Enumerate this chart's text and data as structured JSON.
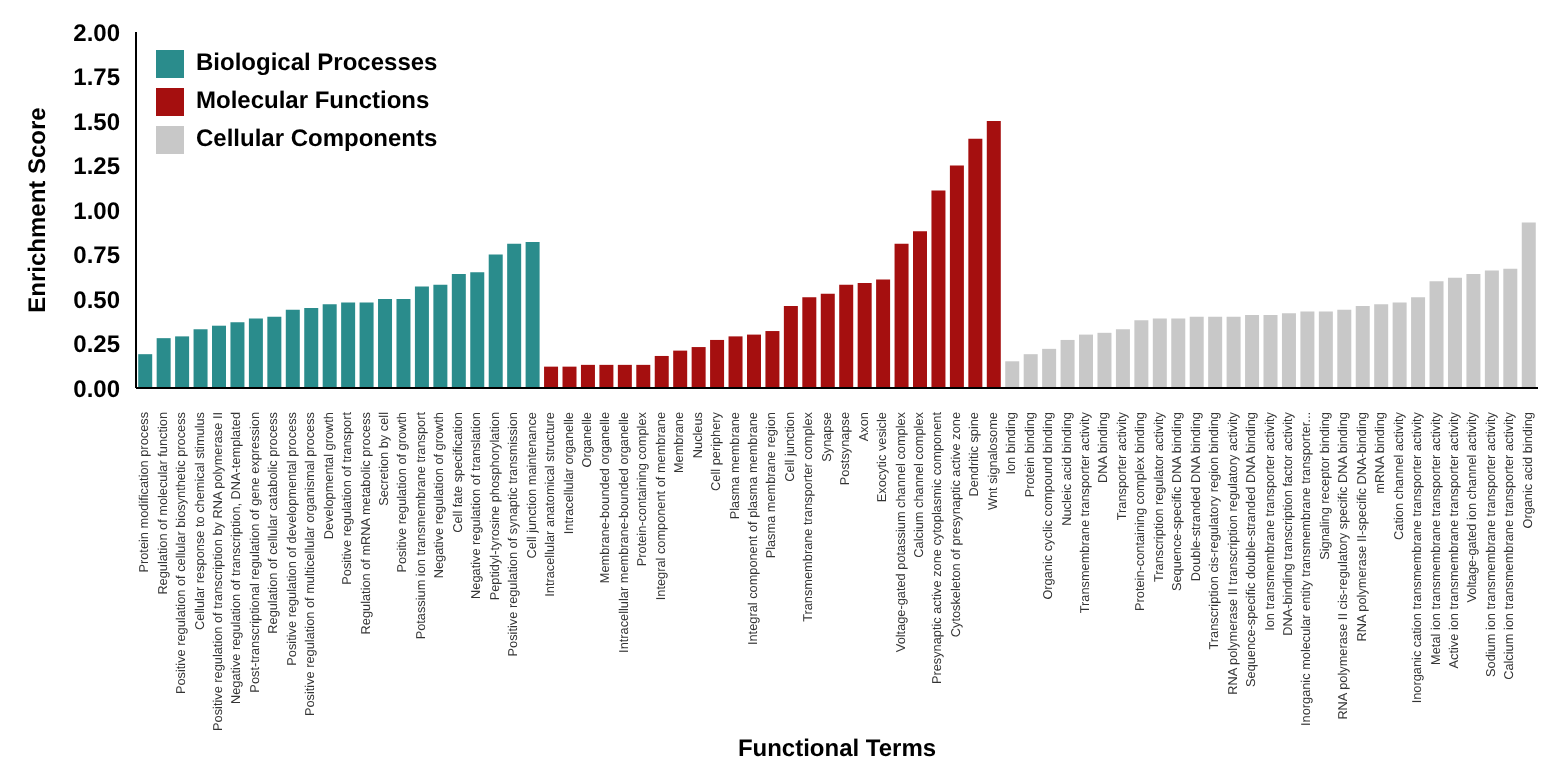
{
  "chart_data": {
    "type": "bar",
    "xlabel": "Functional Terms",
    "ylabel": "Enrichment Score",
    "stacked": true,
    "legend": "top left",
    "grid": false,
    "ylim": [
      0,
      2
    ],
    "yticks": [
      {
        "value": 0,
        "label": "0.00"
      },
      {
        "value": 0.25,
        "label": "0.25"
      },
      {
        "value": 0.5,
        "label": "0.50"
      },
      {
        "value": 0.75,
        "label": "0.75"
      },
      {
        "value": 1,
        "label": "1.00"
      },
      {
        "value": 1.25,
        "label": "1.25"
      },
      {
        "value": 1.5,
        "label": "1.50"
      },
      {
        "value": 1.75,
        "label": "1.75"
      },
      {
        "value": 2,
        "label": "2.00"
      }
    ],
    "categories": [
      "Protein modification process",
      "Regulation of molecular function",
      "Positive regulation of cellular biosynthetic process",
      "Cellular response to chemical stimulus",
      "Positive regulation of transcription by RNA polymerase II",
      "Negative regulation of transcription, DNA-templated",
      "Post-transcriptional regulation of gene expression",
      "Regulation of cellular catabolic process",
      "Positive regulation of developmental process",
      "Positive regulation of multicellular organismal process",
      "Developmental growth",
      "Positive regulation of transport",
      "Regulation of mRNA metabolic process",
      "Secretion by cell",
      "Positive regulation of growth",
      "Potassium ion transmembrane transport",
      "Negative regulation of growth",
      "Cell fate specification",
      "Negative regulation of translation",
      "Peptidyl-tyrosine phosphorylation",
      "Positive regulation of synaptic transmission",
      "Cell junction maintenance",
      "Intracellular anatomical structure",
      "Intracellular organelle",
      "Organelle",
      "Membrane-bounded organelle",
      "Intracellular membrane-bounded organelle",
      "Protein-containing complex",
      "Integral component of membrane",
      "Membrane",
      "Nucleus",
      "Cell periphery",
      "Plasma membrane",
      "Integral component of plasma membrane",
      "Plasma membrane region",
      "Cell junction",
      "Transmembrane transporter complex",
      "Synapse",
      "Postsynapse",
      "Axon",
      "Exocytic vesicle",
      "Voltage-gated potassium channel complex",
      "Calcium channel complex",
      "Presynaptic active zone cytoplasmic component",
      "Cytoskeleton of presynaptic active zone",
      "Dendritic spine",
      "Wnt signalosome",
      "Ion binding",
      "Protein binding",
      "Organic cyclic compound binding",
      "Nucleic acid binding",
      "Transmembrane transporter activity",
      "DNA binding",
      "Transporter activity",
      "Protein-containing complex binding",
      "Transcription regulator activity",
      "Sequence-specific DNA binding",
      "Double-stranded DNA binding",
      "Transcription cis-regulatory region binding",
      "RNA polymerase II transcription regulatory activity",
      "Sequence-specific double-stranded DNA binding",
      "Ion transmembrane transporter activity",
      "DNA-binding transcription factor activity",
      "Inorganic molecular entity transmembrane transporter...",
      "Signaling receptor binding",
      "RNA polymerase II cis-regulatory specific DNA binding",
      "RNA polymerase II-specific DNA-binding",
      "mRNA binding",
      "Cation channel activity",
      "Inorganic cation transmembrane transporter activity",
      "Metal ion transmembrane transporter activity",
      "Active ion transmembrane transporter activity",
      "Voltage-gated ion channel activity",
      "Sodium ion transmembrane transporter activity",
      "Calcium ion transmembrane transporter activity",
      "Organic acid binding"
    ],
    "series": [
      {
        "name": "Biological Processes",
        "color": "#2a8c8c",
        "values": [
          0.19,
          0.28,
          0.29,
          0.33,
          0.35,
          0.37,
          0.39,
          0.4,
          0.44,
          0.45,
          0.47,
          0.48,
          0.48,
          0.5,
          0.5,
          0.57,
          0.58,
          0.64,
          0.65,
          0.75,
          0.81,
          0.82,
          null,
          null,
          null,
          null,
          null,
          null,
          null,
          null,
          null,
          null,
          null,
          null,
          null,
          null,
          null,
          null,
          null,
          null,
          null,
          null,
          null,
          null,
          null,
          null,
          null,
          null,
          null,
          null,
          null,
          null,
          null,
          null,
          null,
          null,
          null,
          null,
          null,
          null,
          null,
          null,
          null,
          null,
          null,
          null,
          null,
          null,
          null,
          null,
          null,
          null,
          null,
          null,
          null,
          null
        ]
      },
      {
        "name": "Molecular Functions",
        "color": "#a50f0f",
        "values": [
          null,
          null,
          null,
          null,
          null,
          null,
          null,
          null,
          null,
          null,
          null,
          null,
          null,
          null,
          null,
          null,
          null,
          null,
          null,
          null,
          null,
          null,
          0.12,
          0.12,
          0.13,
          0.13,
          0.13,
          0.13,
          0.18,
          0.21,
          0.23,
          0.27,
          0.29,
          0.3,
          0.32,
          0.46,
          0.51,
          0.53,
          0.58,
          0.59,
          0.61,
          0.81,
          0.88,
          1.11,
          1.25,
          1.4,
          1.5,
          null,
          null,
          null,
          null,
          null,
          null,
          null,
          null,
          null,
          null,
          null,
          null,
          null,
          null,
          null,
          null,
          null,
          null,
          null,
          null,
          null,
          null,
          null,
          null,
          null,
          null,
          null,
          null,
          null
        ]
      },
      {
        "name": "Cellular Components",
        "color": "#c8c8c8",
        "values": [
          null,
          null,
          null,
          null,
          null,
          null,
          null,
          null,
          null,
          null,
          null,
          null,
          null,
          null,
          null,
          null,
          null,
          null,
          null,
          null,
          null,
          null,
          null,
          null,
          null,
          null,
          null,
          null,
          null,
          null,
          null,
          null,
          null,
          null,
          null,
          null,
          null,
          null,
          null,
          null,
          null,
          null,
          null,
          null,
          null,
          null,
          null,
          0.15,
          0.19,
          0.22,
          0.27,
          0.3,
          0.31,
          0.33,
          0.38,
          0.39,
          0.39,
          0.4,
          0.4,
          0.4,
          0.41,
          0.41,
          0.42,
          0.43,
          0.43,
          0.44,
          0.46,
          0.47,
          0.48,
          0.51,
          0.6,
          0.62,
          0.64,
          0.66,
          0.67,
          0.93
        ]
      }
    ]
  }
}
